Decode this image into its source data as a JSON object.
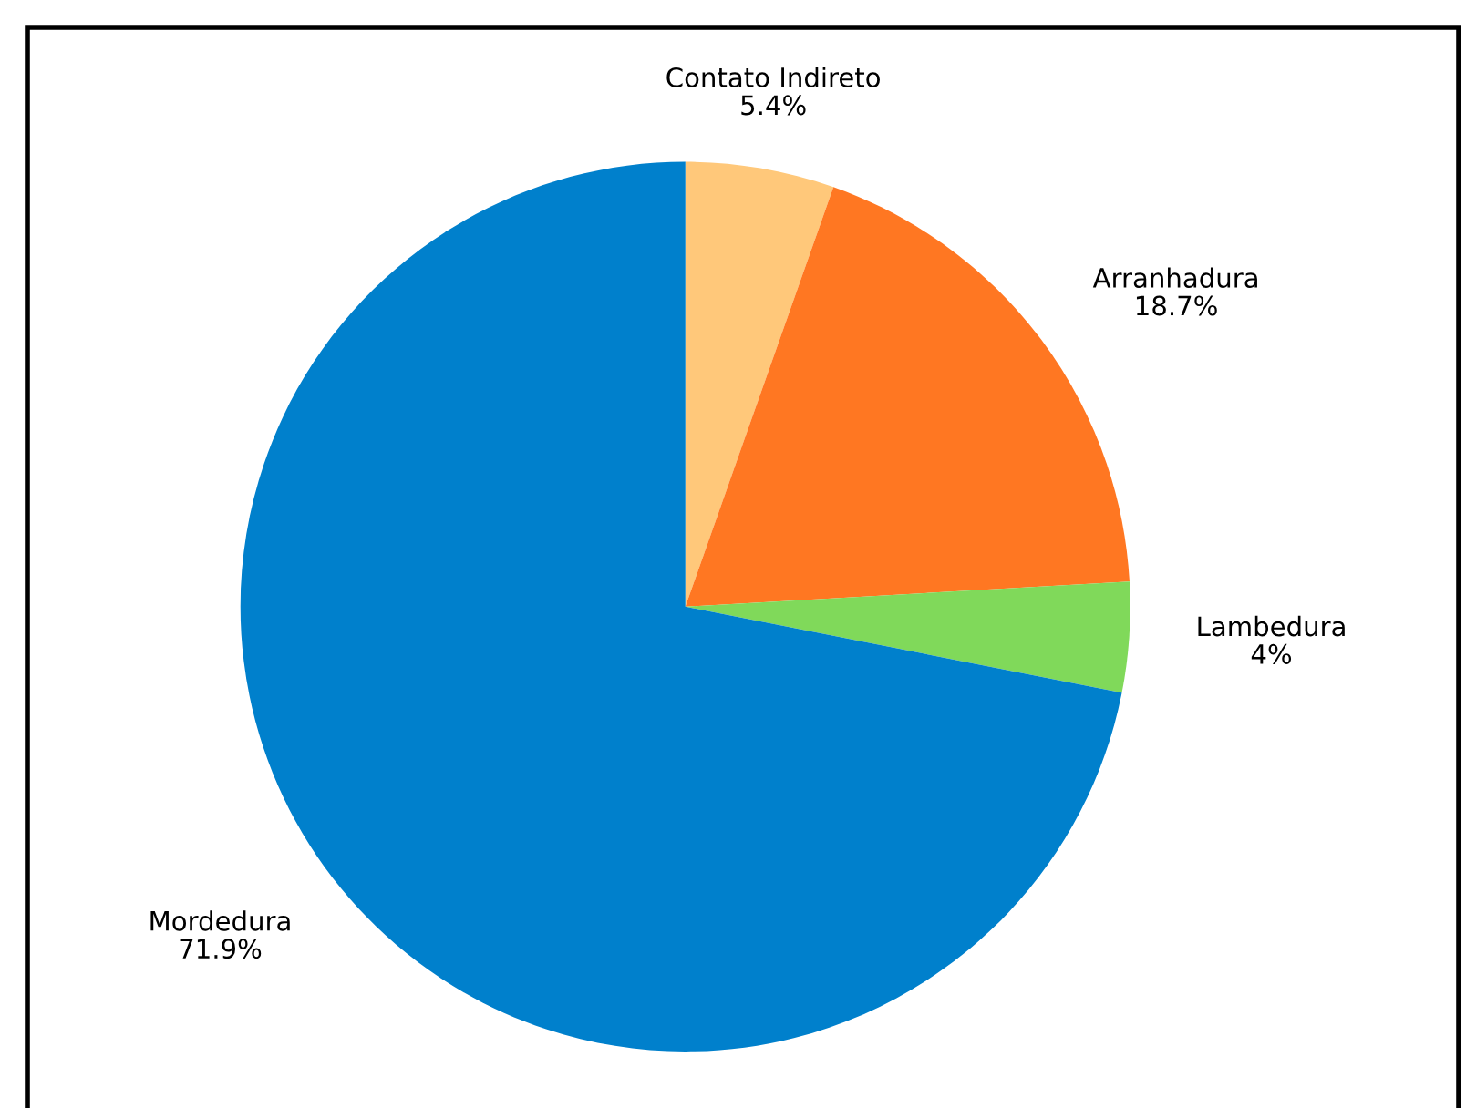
{
  "chart_data": {
    "type": "pie",
    "categories": [
      "Contato Indireto",
      "Arranhadura",
      "Lambedura",
      "Mordedura"
    ],
    "values": [
      5.4,
      18.7,
      4,
      71.9
    ],
    "value_labels": [
      "5.4%",
      "18.7%",
      "4%",
      "71.9%"
    ],
    "colors": [
      "#ffc87a",
      "#ff7722",
      "#80d95a",
      "#0080cc"
    ],
    "legend": false
  }
}
